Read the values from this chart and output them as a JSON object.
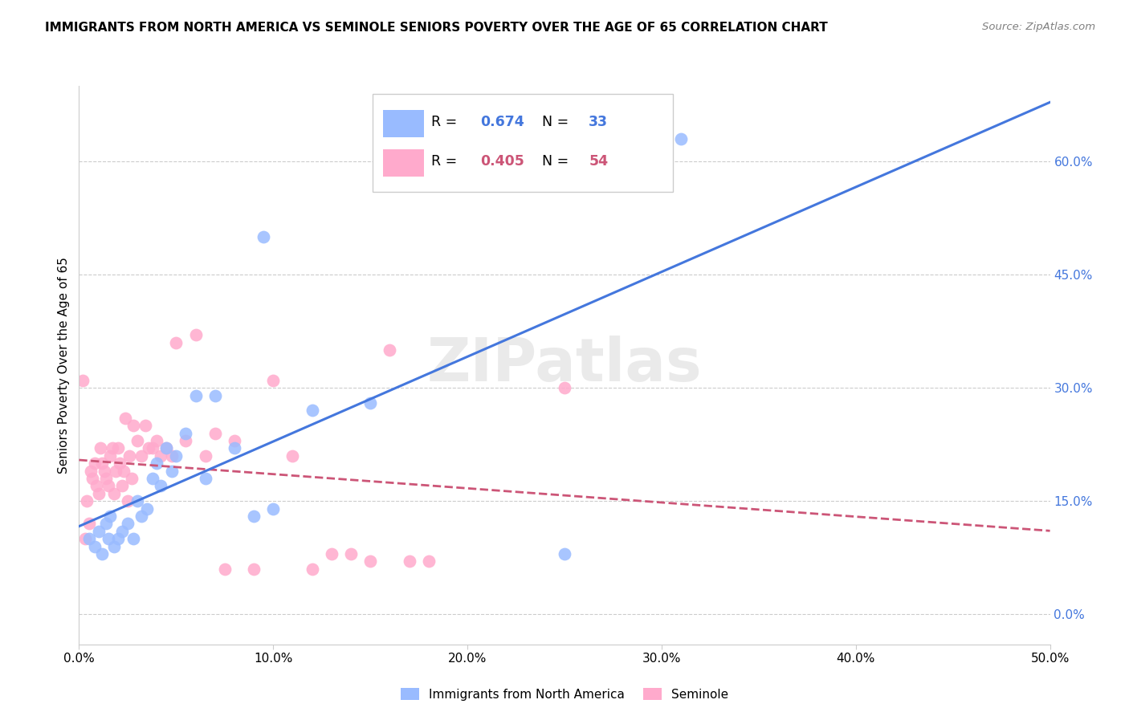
{
  "title": "IMMIGRANTS FROM NORTH AMERICA VS SEMINOLE SENIORS POVERTY OVER THE AGE OF 65 CORRELATION CHART",
  "source": "Source: ZipAtlas.com",
  "ylabel": "Seniors Poverty Over the Age of 65",
  "xlim": [
    0.0,
    0.5
  ],
  "ylim": [
    -0.04,
    0.7
  ],
  "xticklabels": [
    "0.0%",
    "10.0%",
    "20.0%",
    "30.0%",
    "40.0%",
    "50.0%"
  ],
  "xtick_vals": [
    0.0,
    0.1,
    0.2,
    0.3,
    0.4,
    0.5
  ],
  "yticks_right": [
    0.0,
    0.15,
    0.3,
    0.45,
    0.6
  ],
  "ytick_right_labels": [
    "0.0%",
    "15.0%",
    "30.0%",
    "45.0%",
    "60.0%"
  ],
  "blue_fill": "#99BBFF",
  "blue_line": "#4477DD",
  "pink_fill": "#FFAACC",
  "pink_line": "#CC5577",
  "watermark_color": "#DDDDDD",
  "blue_x": [
    0.005,
    0.008,
    0.01,
    0.012,
    0.014,
    0.015,
    0.016,
    0.018,
    0.02,
    0.022,
    0.025,
    0.028,
    0.03,
    0.032,
    0.035,
    0.038,
    0.04,
    0.042,
    0.045,
    0.048,
    0.05,
    0.055,
    0.06,
    0.065,
    0.07,
    0.08,
    0.09,
    0.095,
    0.1,
    0.12,
    0.15,
    0.25,
    0.31
  ],
  "blue_y": [
    0.1,
    0.09,
    0.11,
    0.08,
    0.12,
    0.1,
    0.13,
    0.09,
    0.1,
    0.11,
    0.12,
    0.1,
    0.15,
    0.13,
    0.14,
    0.18,
    0.2,
    0.17,
    0.22,
    0.19,
    0.21,
    0.24,
    0.29,
    0.18,
    0.29,
    0.22,
    0.13,
    0.5,
    0.14,
    0.27,
    0.28,
    0.08,
    0.63
  ],
  "pink_x": [
    0.002,
    0.003,
    0.004,
    0.005,
    0.006,
    0.007,
    0.008,
    0.009,
    0.01,
    0.011,
    0.012,
    0.013,
    0.014,
    0.015,
    0.016,
    0.017,
    0.018,
    0.019,
    0.02,
    0.021,
    0.022,
    0.023,
    0.024,
    0.025,
    0.026,
    0.027,
    0.028,
    0.03,
    0.032,
    0.034,
    0.036,
    0.038,
    0.04,
    0.042,
    0.045,
    0.048,
    0.05,
    0.055,
    0.06,
    0.065,
    0.07,
    0.075,
    0.08,
    0.09,
    0.1,
    0.11,
    0.12,
    0.13,
    0.14,
    0.15,
    0.16,
    0.17,
    0.18,
    0.25
  ],
  "pink_y": [
    0.31,
    0.1,
    0.15,
    0.12,
    0.19,
    0.18,
    0.2,
    0.17,
    0.16,
    0.22,
    0.2,
    0.19,
    0.18,
    0.17,
    0.21,
    0.22,
    0.16,
    0.19,
    0.22,
    0.2,
    0.17,
    0.19,
    0.26,
    0.15,
    0.21,
    0.18,
    0.25,
    0.23,
    0.21,
    0.25,
    0.22,
    0.22,
    0.23,
    0.21,
    0.22,
    0.21,
    0.36,
    0.23,
    0.37,
    0.21,
    0.24,
    0.06,
    0.23,
    0.06,
    0.31,
    0.21,
    0.06,
    0.08,
    0.08,
    0.07,
    0.35,
    0.07,
    0.07,
    0.3
  ]
}
